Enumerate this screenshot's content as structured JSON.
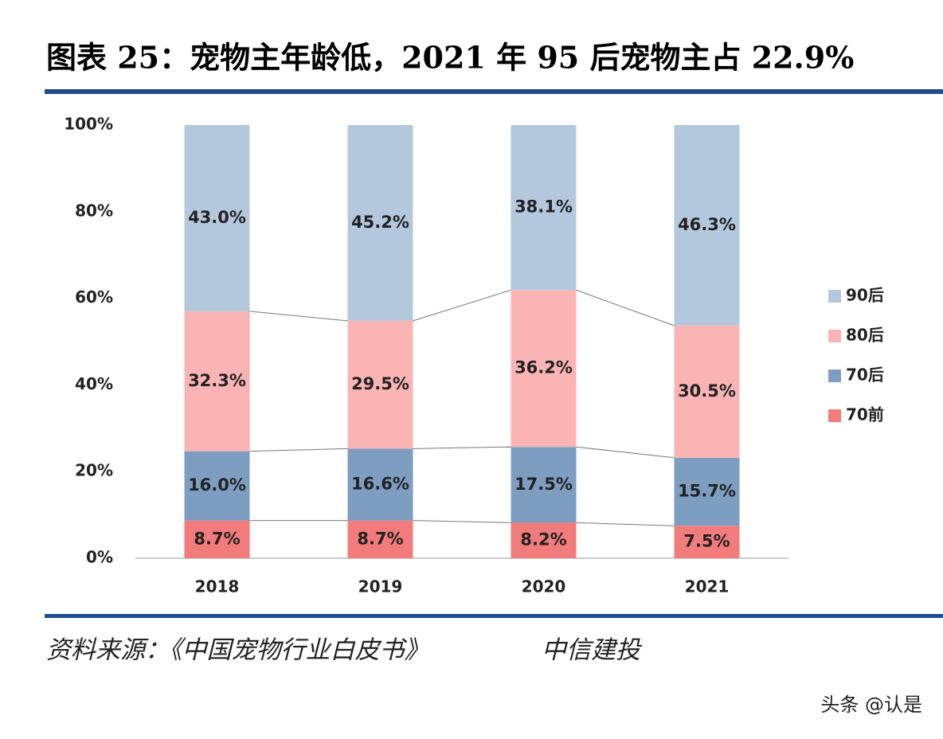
{
  "chart_data": {
    "type": "stacked_bar",
    "title": "图表 25：宠物主年龄低，2021 年 95 后宠物主占 22.9%",
    "source": "资料来源：《中国宠物行业白皮书》",
    "source_org": "中信建投",
    "watermark": "头条 @认是",
    "categories": [
      "2018",
      "2019",
      "2020",
      "2021"
    ],
    "series": [
      {
        "name": "70前",
        "color": "#f27b7b",
        "values": [
          8.7,
          8.7,
          8.2,
          7.5
        ],
        "value_labels": [
          "8.7%",
          "8.7%",
          "8.2%",
          "7.5%"
        ]
      },
      {
        "name": "70后",
        "color": "#7d9ec0",
        "values": [
          16.0,
          16.6,
          17.5,
          15.7
        ],
        "value_labels": [
          "16.0%",
          "16.6%",
          "17.5%",
          "15.7%"
        ]
      },
      {
        "name": "80后",
        "color": "#fbb4b4",
        "values": [
          32.3,
          29.5,
          36.2,
          30.5
        ],
        "value_labels": [
          "32.3%",
          "29.5%",
          "36.2%",
          "30.5%"
        ]
      },
      {
        "name": "90后",
        "color": "#b4c8dd",
        "values": [
          43.0,
          45.2,
          38.1,
          46.3
        ],
        "value_labels": [
          "43.0%",
          "45.2%",
          "38.1%",
          "46.3%"
        ]
      }
    ],
    "ylim": [
      0,
      100
    ],
    "yticks": [
      {
        "value": 0,
        "label": "0%"
      },
      {
        "value": 20,
        "label": "20%"
      },
      {
        "value": 40,
        "label": "40%"
      },
      {
        "value": 60,
        "label": "60%"
      },
      {
        "value": 80,
        "label": "80%"
      },
      {
        "value": 100,
        "label": "100%"
      }
    ],
    "legend": "right"
  }
}
